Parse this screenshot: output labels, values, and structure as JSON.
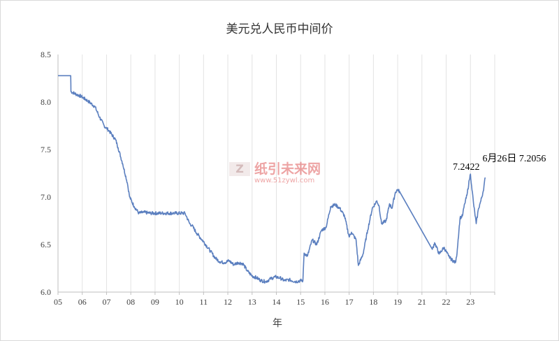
{
  "chart_data": {
    "type": "line",
    "title": "美元兑人民币中间价",
    "xlabel": "年",
    "ylabel": "",
    "ylim": [
      6.0,
      8.5
    ],
    "yticks": [
      "6.0",
      "6.5",
      "7.0",
      "7.5",
      "8.0",
      "8.5"
    ],
    "xlim": [
      2005.0,
      2023.9
    ],
    "xticks": [
      "05",
      "06",
      "07",
      "08",
      "09",
      "10",
      "11",
      "12",
      "13",
      "14",
      "15",
      "16",
      "17",
      "18",
      "19",
      "21",
      "22",
      "23"
    ],
    "grid": "vertical",
    "line_color": "#5b7fbf",
    "series": [
      {
        "x": [
          2005.0,
          2005.55,
          2005.56,
          2005.8,
          2006.0,
          2006.3,
          2006.6,
          2006.8,
          2007.0,
          2007.2,
          2007.5,
          2007.6,
          2007.8,
          2008.0,
          2008.1,
          2008.3,
          2008.5,
          2008.7,
          2009.0,
          2009.5,
          2010.0,
          2010.5,
          2010.55,
          2010.7,
          2010.8,
          2011.0,
          2011.3,
          2011.6,
          2011.8,
          2012.0,
          2012.2,
          2012.4,
          2012.6,
          2012.8,
          2013.0,
          2013.2,
          2013.4,
          2013.6,
          2013.8,
          2014.0,
          2014.2,
          2014.4,
          2014.6,
          2014.8,
          2015.0,
          2015.3,
          2015.5,
          2015.6,
          2015.65,
          2015.8,
          2016.0,
          2016.2,
          2016.4,
          2016.6,
          2016.8,
          2017.0,
          2017.2,
          2017.4,
          2017.6,
          2017.7,
          2017.9,
          2018.0,
          2018.2,
          2018.4,
          2018.6,
          2018.8,
          2018.9,
          2019.0,
          2019.2,
          2019.35,
          2019.45,
          2019.6,
          2019.7,
          2019.8,
          2021.2,
          2021.3,
          2021.5,
          2021.7,
          2021.9,
          2022.0,
          2022.2,
          2022.25,
          2022.4,
          2022.5,
          2022.6,
          2022.7,
          2022.8,
          2022.85,
          2022.9,
          2023.0,
          2023.1,
          2023.2,
          2023.3,
          2023.4,
          2023.49
        ],
        "y": [
          8.277,
          8.277,
          8.11,
          8.08,
          8.06,
          8.01,
          7.95,
          7.84,
          7.75,
          7.7,
          7.6,
          7.52,
          7.35,
          7.15,
          7.0,
          6.9,
          6.83,
          6.84,
          6.83,
          6.83,
          6.83,
          6.83,
          6.8,
          6.72,
          6.7,
          6.62,
          6.53,
          6.43,
          6.36,
          6.32,
          6.31,
          6.33,
          6.29,
          6.31,
          6.3,
          6.22,
          6.17,
          6.15,
          6.12,
          6.11,
          6.14,
          6.16,
          6.15,
          6.12,
          6.13,
          6.11,
          6.12,
          6.12,
          6.41,
          6.38,
          6.55,
          6.5,
          6.65,
          6.68,
          6.9,
          6.92,
          6.88,
          6.8,
          6.58,
          6.63,
          6.55,
          6.28,
          6.4,
          6.65,
          6.88,
          6.96,
          6.9,
          6.72,
          6.75,
          6.93,
          6.88,
          7.05,
          7.08,
          7.05,
          6.45,
          6.52,
          6.4,
          6.47,
          6.38,
          6.35,
          6.31,
          6.37,
          6.78,
          6.8,
          6.93,
          7.02,
          7.18,
          7.2422,
          7.12,
          6.9,
          6.72,
          6.88,
          6.96,
          7.06,
          7.2056
        ]
      }
    ],
    "annotations": [
      {
        "text": "7.2422",
        "x": 2022.85,
        "y": 7.2422
      },
      {
        "text": "6月26日 7.2056",
        "x": 2023.49,
        "y": 7.2056
      }
    ]
  },
  "watermark": {
    "cn": "纸引未来网",
    "url": "www.51zywl.com",
    "logo": "纸引未来"
  }
}
